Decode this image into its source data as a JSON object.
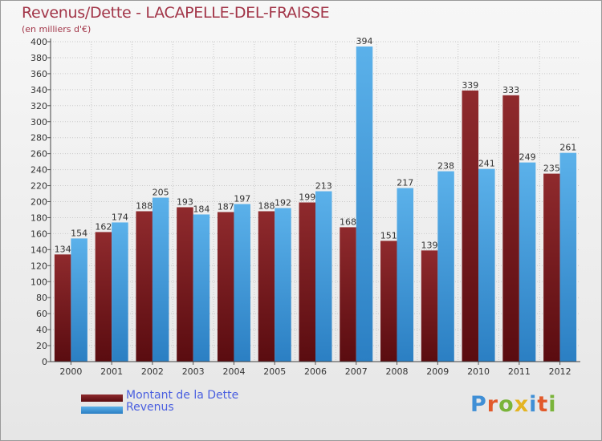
{
  "title": "Revenus/Dette - LACAPELLE-DEL-FRAISSE",
  "subtitle": "(en milliers d'€)",
  "brand": "Proxiti",
  "brand_colors": [
    "#3f8fd6",
    "#e25a2b",
    "#7ab43a",
    "#e4b422",
    "#3f8fd6",
    "#e25a2b",
    "#7ab43a"
  ],
  "colors": {
    "dette": "#8b1e22",
    "revenus": "#4aa3e4",
    "title": "#a23548",
    "legend_text": "#4a5fe0"
  },
  "legend": {
    "dette": "Montant de la Dette",
    "revenus": "Revenus"
  },
  "chart_data": {
    "type": "bar",
    "categories": [
      "2000",
      "2001",
      "2002",
      "2003",
      "2004",
      "2005",
      "2006",
      "2007",
      "2008",
      "2009",
      "2010",
      "2011",
      "2012"
    ],
    "series": [
      {
        "name": "Montant de la Dette",
        "values": [
          134,
          162,
          188,
          193,
          187,
          188,
          199,
          168,
          151,
          139,
          339,
          333,
          235
        ]
      },
      {
        "name": "Revenus",
        "values": [
          154,
          174,
          205,
          184,
          197,
          192,
          213,
          394,
          217,
          238,
          241,
          249,
          261
        ]
      }
    ],
    "y_ticks": [
      "0",
      "20",
      "40",
      "60",
      "80",
      "100",
      "120",
      "140",
      "160",
      "180",
      "200",
      "220",
      "240",
      "260",
      "280",
      "300",
      "320",
      "340",
      "360",
      "380",
      "400"
    ],
    "ylim": [
      0,
      400
    ],
    "grid": true
  }
}
